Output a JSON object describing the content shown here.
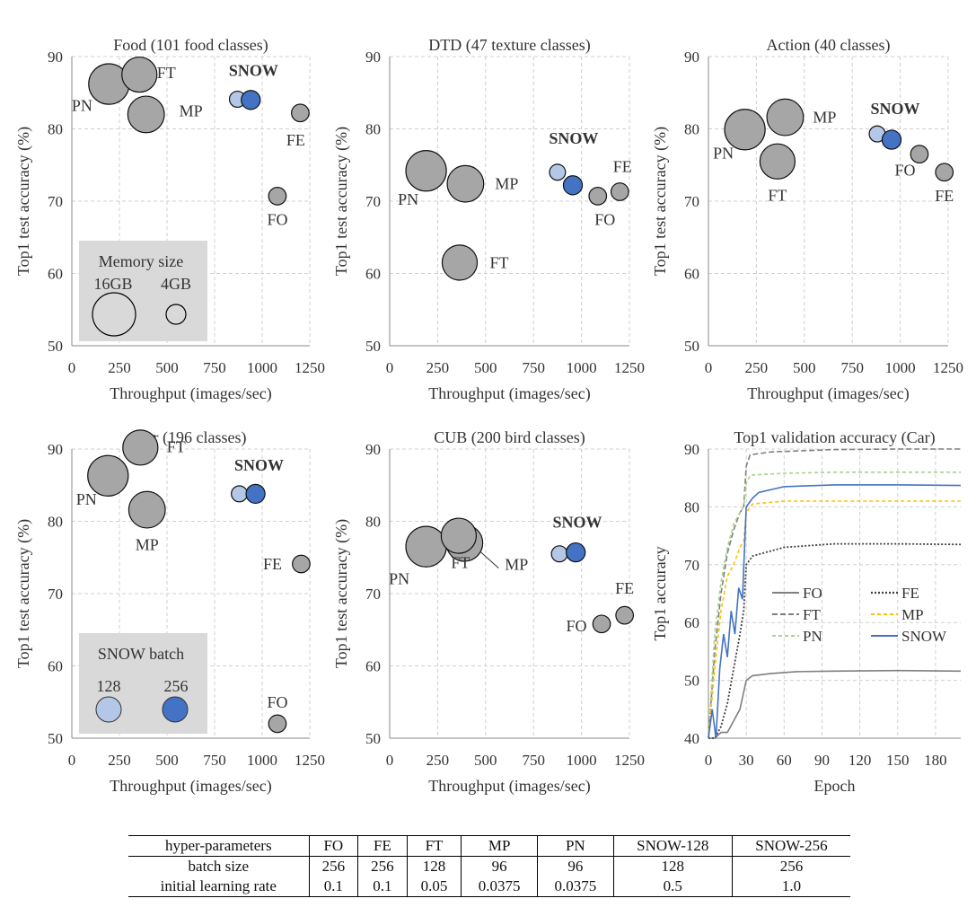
{
  "colors": {
    "gray_fill": "#a6a6a6",
    "snow128_fill": "#b4c7e7",
    "snow256_fill": "#4472c4",
    "legend_bg": "#d9d9d9",
    "grid": "#d0d0d0",
    "FO": "#7f7f7f",
    "FE": "#404040",
    "FT": "#7f7f7f",
    "MP": "#ffc000",
    "PN": "#a9d18e",
    "SNOW": "#4472c4"
  },
  "chart_data": [
    {
      "type": "scatter",
      "title": "Food (101 food classes)",
      "xlabel": "Throughput (images/sec)",
      "ylabel": "Top1 test accuracy (%)",
      "xlim": [
        0,
        1250
      ],
      "ylim": [
        50,
        90
      ],
      "xticks": [
        "0",
        "250",
        "500",
        "750",
        "1000",
        "1250"
      ],
      "yticks": [
        "50",
        "60",
        "70",
        "80",
        "90"
      ],
      "grid": true,
      "snow_label": "SNOW",
      "points": [
        {
          "name": "PN",
          "x": 195,
          "y": 86.2,
          "memory_gb": 16,
          "type": "gray"
        },
        {
          "name": "FT",
          "x": 355,
          "y": 87.5,
          "memory_gb": 12,
          "type": "gray"
        },
        {
          "name": "MP",
          "x": 390,
          "y": 82.0,
          "memory_gb": 13,
          "type": "gray"
        },
        {
          "name": "FO",
          "x": 1080,
          "y": 70.7,
          "memory_gb": 3,
          "type": "gray"
        },
        {
          "name": "FE",
          "x": 1200,
          "y": 82.2,
          "memory_gb": 3,
          "type": "gray"
        },
        {
          "name": "SNOW-128",
          "x": 870,
          "y": 84.1,
          "memory_gb": 2.5,
          "type": "snow128"
        },
        {
          "name": "SNOW-256",
          "x": 940,
          "y": 84.0,
          "memory_gb": 3.5,
          "type": "snow256"
        }
      ],
      "legend": {
        "type": "memory",
        "title": "Memory size",
        "labels": [
          "16GB",
          "4GB"
        ]
      }
    },
    {
      "type": "scatter",
      "title": "DTD (47 texture classes)",
      "xlabel": "Throughput (images/sec)",
      "ylabel": "Top1 test accuracy (%)",
      "xlim": [
        0,
        1250
      ],
      "ylim": [
        50,
        90
      ],
      "xticks": [
        "0",
        "250",
        "500",
        "750",
        "1000",
        "1250"
      ],
      "yticks": [
        "50",
        "60",
        "70",
        "80",
        "90"
      ],
      "grid": true,
      "snow_label": "SNOW",
      "points": [
        {
          "name": "PN",
          "x": 190,
          "y": 74.2,
          "memory_gb": 16,
          "type": "gray"
        },
        {
          "name": "MP",
          "x": 395,
          "y": 72.4,
          "memory_gb": 13,
          "type": "gray"
        },
        {
          "name": "FT",
          "x": 365,
          "y": 61.5,
          "memory_gb": 12,
          "type": "gray"
        },
        {
          "name": "FO",
          "x": 1085,
          "y": 70.7,
          "memory_gb": 3,
          "type": "gray"
        },
        {
          "name": "FE",
          "x": 1200,
          "y": 71.3,
          "memory_gb": 3,
          "type": "gray"
        },
        {
          "name": "SNOW-128",
          "x": 875,
          "y": 74.0,
          "memory_gb": 2.5,
          "type": "snow128"
        },
        {
          "name": "SNOW-256",
          "x": 955,
          "y": 72.2,
          "memory_gb": 3.5,
          "type": "snow256"
        }
      ]
    },
    {
      "type": "scatter",
      "title": "Action (40 classes)",
      "xlabel": "Throughput (images/sec)",
      "ylabel": "Top1 test accuracy (%)",
      "xlim": [
        0,
        1250
      ],
      "ylim": [
        50,
        90
      ],
      "xticks": [
        "0",
        "250",
        "500",
        "750",
        "1000",
        "1250"
      ],
      "yticks": [
        "50",
        "60",
        "70",
        "80",
        "90"
      ],
      "grid": true,
      "snow_label": "SNOW",
      "points": [
        {
          "name": "PN",
          "x": 190,
          "y": 79.9,
          "memory_gb": 16,
          "type": "gray"
        },
        {
          "name": "MP",
          "x": 400,
          "y": 81.6,
          "memory_gb": 13,
          "type": "gray"
        },
        {
          "name": "FT",
          "x": 360,
          "y": 75.5,
          "memory_gb": 12,
          "type": "gray"
        },
        {
          "name": "FO",
          "x": 1100,
          "y": 76.5,
          "memory_gb": 3,
          "type": "gray"
        },
        {
          "name": "FE",
          "x": 1230,
          "y": 74.0,
          "memory_gb": 3,
          "type": "gray"
        },
        {
          "name": "SNOW-128",
          "x": 880,
          "y": 79.3,
          "memory_gb": 2.5,
          "type": "snow128"
        },
        {
          "name": "SNOW-256",
          "x": 955,
          "y": 78.5,
          "memory_gb": 3.5,
          "type": "snow256"
        }
      ]
    },
    {
      "type": "scatter",
      "title": "Car (196 classes)",
      "xlabel": "Throughput (images/sec)",
      "ylabel": "Top1 test accuracy (%)",
      "xlim": [
        0,
        1250
      ],
      "ylim": [
        50,
        90
      ],
      "xticks": [
        "0",
        "250",
        "500",
        "750",
        "1000",
        "1250"
      ],
      "yticks": [
        "50",
        "60",
        "70",
        "80",
        "90"
      ],
      "grid": true,
      "snow_label": "SNOW",
      "points": [
        {
          "name": "PN",
          "x": 190,
          "y": 86.3,
          "memory_gb": 16,
          "type": "gray"
        },
        {
          "name": "FT",
          "x": 360,
          "y": 90.2,
          "memory_gb": 12,
          "type": "gray"
        },
        {
          "name": "MP",
          "x": 395,
          "y": 81.6,
          "memory_gb": 13,
          "type": "gray"
        },
        {
          "name": "FE",
          "x": 1205,
          "y": 74.1,
          "memory_gb": 3,
          "type": "gray"
        },
        {
          "name": "FO",
          "x": 1080,
          "y": 52.0,
          "memory_gb": 3,
          "type": "gray"
        },
        {
          "name": "SNOW-128",
          "x": 880,
          "y": 83.8,
          "memory_gb": 2.5,
          "type": "snow128"
        },
        {
          "name": "SNOW-256",
          "x": 965,
          "y": 83.8,
          "memory_gb": 3.5,
          "type": "snow256"
        }
      ],
      "legend": {
        "type": "snow",
        "title": "SNOW batch",
        "labels": [
          "128",
          "256"
        ]
      }
    },
    {
      "type": "scatter",
      "title": "CUB (200 bird classes)",
      "xlabel": "Throughput (images/sec)",
      "ylabel": "Top1 test accuracy (%)",
      "xlim": [
        0,
        1250
      ],
      "ylim": [
        50,
        90
      ],
      "xticks": [
        "0",
        "250",
        "500",
        "750",
        "1000",
        "1250"
      ],
      "yticks": [
        "50",
        "60",
        "70",
        "80",
        "90"
      ],
      "grid": true,
      "snow_label": "SNOW",
      "points": [
        {
          "name": "PN",
          "x": 190,
          "y": 76.5,
          "memory_gb": 16,
          "type": "gray"
        },
        {
          "name": "MP",
          "x": 390,
          "y": 77.0,
          "memory_gb": 13,
          "type": "gray"
        },
        {
          "name": "FT",
          "x": 360,
          "y": 78.0,
          "memory_gb": 12,
          "type": "gray"
        },
        {
          "name": "FO",
          "x": 1105,
          "y": 65.8,
          "memory_gb": 3,
          "type": "gray"
        },
        {
          "name": "FE",
          "x": 1225,
          "y": 67.0,
          "memory_gb": 3,
          "type": "gray"
        },
        {
          "name": "SNOW-128",
          "x": 885,
          "y": 75.5,
          "memory_gb": 2.5,
          "type": "snow128"
        },
        {
          "name": "SNOW-256",
          "x": 970,
          "y": 75.7,
          "memory_gb": 3.5,
          "type": "snow256"
        }
      ]
    },
    {
      "type": "line",
      "title": "Top1 validation accuracy (Car)",
      "xlabel": "Epoch",
      "ylabel": "Top1 accuracy",
      "xlim": [
        0,
        200
      ],
      "ylim": [
        40,
        90
      ],
      "xticks": [
        "0",
        "30",
        "60",
        "90",
        "120",
        "150",
        "180"
      ],
      "yticks": [
        "40",
        "50",
        "60",
        "70",
        "80",
        "90"
      ],
      "grid": true,
      "series": [
        {
          "name": "FO",
          "points": [
            [
              0,
              40
            ],
            [
              5,
              40
            ],
            [
              10,
              41
            ],
            [
              15,
              41
            ],
            [
              20,
              43
            ],
            [
              25,
              45
            ],
            [
              28,
              48
            ],
            [
              30,
              50
            ],
            [
              35,
              50.8
            ],
            [
              50,
              51.2
            ],
            [
              70,
              51.5
            ],
            [
              100,
              51.6
            ],
            [
              150,
              51.7
            ],
            [
              200,
              51.6
            ]
          ]
        },
        {
          "name": "FT",
          "points": [
            [
              0,
              40
            ],
            [
              5,
              55
            ],
            [
              10,
              65
            ],
            [
              15,
              72
            ],
            [
              20,
              76
            ],
            [
              25,
              79
            ],
            [
              28,
              80
            ],
            [
              30,
              87
            ],
            [
              33,
              89
            ],
            [
              50,
              89.5
            ],
            [
              100,
              89.9
            ],
            [
              150,
              90
            ],
            [
              200,
              90
            ]
          ]
        },
        {
          "name": "PN",
          "points": [
            [
              0,
              40
            ],
            [
              5,
              58
            ],
            [
              10,
              67
            ],
            [
              15,
              73
            ],
            [
              20,
              77
            ],
            [
              25,
              79
            ],
            [
              28,
              80
            ],
            [
              30,
              84
            ],
            [
              33,
              85.5
            ],
            [
              60,
              85.8
            ],
            [
              100,
              86
            ],
            [
              150,
              86
            ],
            [
              200,
              86
            ]
          ]
        },
        {
          "name": "FE",
          "points": [
            [
              0,
              40
            ],
            [
              5,
              40
            ],
            [
              10,
              42
            ],
            [
              15,
              46
            ],
            [
              20,
              52
            ],
            [
              25,
              58
            ],
            [
              28,
              62
            ],
            [
              30,
              70
            ],
            [
              35,
              71.5
            ],
            [
              60,
              73
            ],
            [
              100,
              73.6
            ],
            [
              150,
              73.6
            ],
            [
              200,
              73.5
            ]
          ]
        },
        {
          "name": "MP",
          "points": [
            [
              0,
              40
            ],
            [
              5,
              52
            ],
            [
              10,
              62
            ],
            [
              15,
              68
            ],
            [
              20,
              70
            ],
            [
              25,
              73
            ],
            [
              28,
              74
            ],
            [
              30,
              79
            ],
            [
              35,
              80.5
            ],
            [
              60,
              81
            ],
            [
              100,
              81
            ],
            [
              150,
              81
            ],
            [
              200,
              81
            ]
          ]
        },
        {
          "name": "SNOW",
          "points": [
            [
              0,
              40
            ],
            [
              3,
              45
            ],
            [
              6,
              40
            ],
            [
              9,
              52
            ],
            [
              12,
              58
            ],
            [
              15,
              54
            ],
            [
              18,
              62
            ],
            [
              21,
              58
            ],
            [
              24,
              66
            ],
            [
              27,
              64
            ],
            [
              30,
              80
            ],
            [
              35,
              81.5
            ],
            [
              40,
              82.5
            ],
            [
              60,
              83.5
            ],
            [
              100,
              83.8
            ],
            [
              150,
              83.8
            ],
            [
              200,
              83.7
            ]
          ]
        }
      ],
      "legend_order": [
        "FO",
        "FE",
        "FT",
        "MP",
        "PN",
        "SNOW"
      ]
    }
  ],
  "table": {
    "headers": [
      "hyper-parameters",
      "FO",
      "FE",
      "FT",
      "MP",
      "PN",
      "SNOW-128",
      "SNOW-256"
    ],
    "rows": [
      [
        "batch size",
        "256",
        "256",
        "128",
        "96",
        "96",
        "128",
        "256"
      ],
      [
        "initial learning rate",
        "0.1",
        "0.1",
        "0.05",
        "0.0375",
        "0.0375",
        "0.5",
        "1.0"
      ]
    ]
  }
}
